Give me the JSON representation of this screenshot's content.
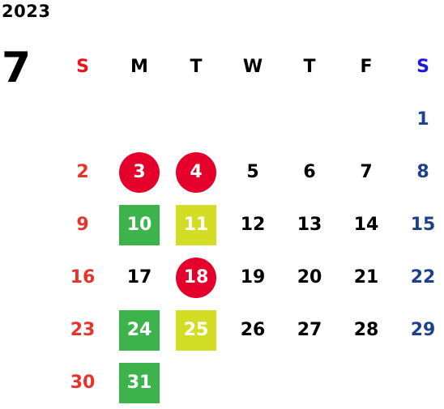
{
  "calendar": {
    "year": "2023",
    "month": "7",
    "weekdays": [
      {
        "label": "S",
        "color": "#e8121e"
      },
      {
        "label": "M",
        "color": "#000000"
      },
      {
        "label": "T",
        "color": "#000000"
      },
      {
        "label": "W",
        "color": "#000000"
      },
      {
        "label": "T",
        "color": "#000000"
      },
      {
        "label": "F",
        "color": "#000000"
      },
      {
        "label": "S",
        "color": "#1d18e0"
      }
    ],
    "first_weekday_index": 6,
    "days_in_month": 31,
    "colors": {
      "sunday_text": "#e8332a",
      "saturday_text": "#1f3f8f",
      "weekday_text": "#000000",
      "marker_text": "#ffffff"
    },
    "highlights": [
      {
        "day": 3,
        "shape": "circle",
        "color": "#e4002b"
      },
      {
        "day": 4,
        "shape": "circle",
        "color": "#e4002b"
      },
      {
        "day": 18,
        "shape": "circle",
        "color": "#e4002b"
      },
      {
        "day": 10,
        "shape": "square",
        "color": "#3cb44b"
      },
      {
        "day": 24,
        "shape": "square",
        "color": "#3cb44b"
      },
      {
        "day": 31,
        "shape": "square",
        "color": "#3cb44b"
      },
      {
        "day": 11,
        "shape": "square",
        "color": "#d4dd25"
      },
      {
        "day": 25,
        "shape": "square",
        "color": "#d4dd25"
      }
    ]
  }
}
